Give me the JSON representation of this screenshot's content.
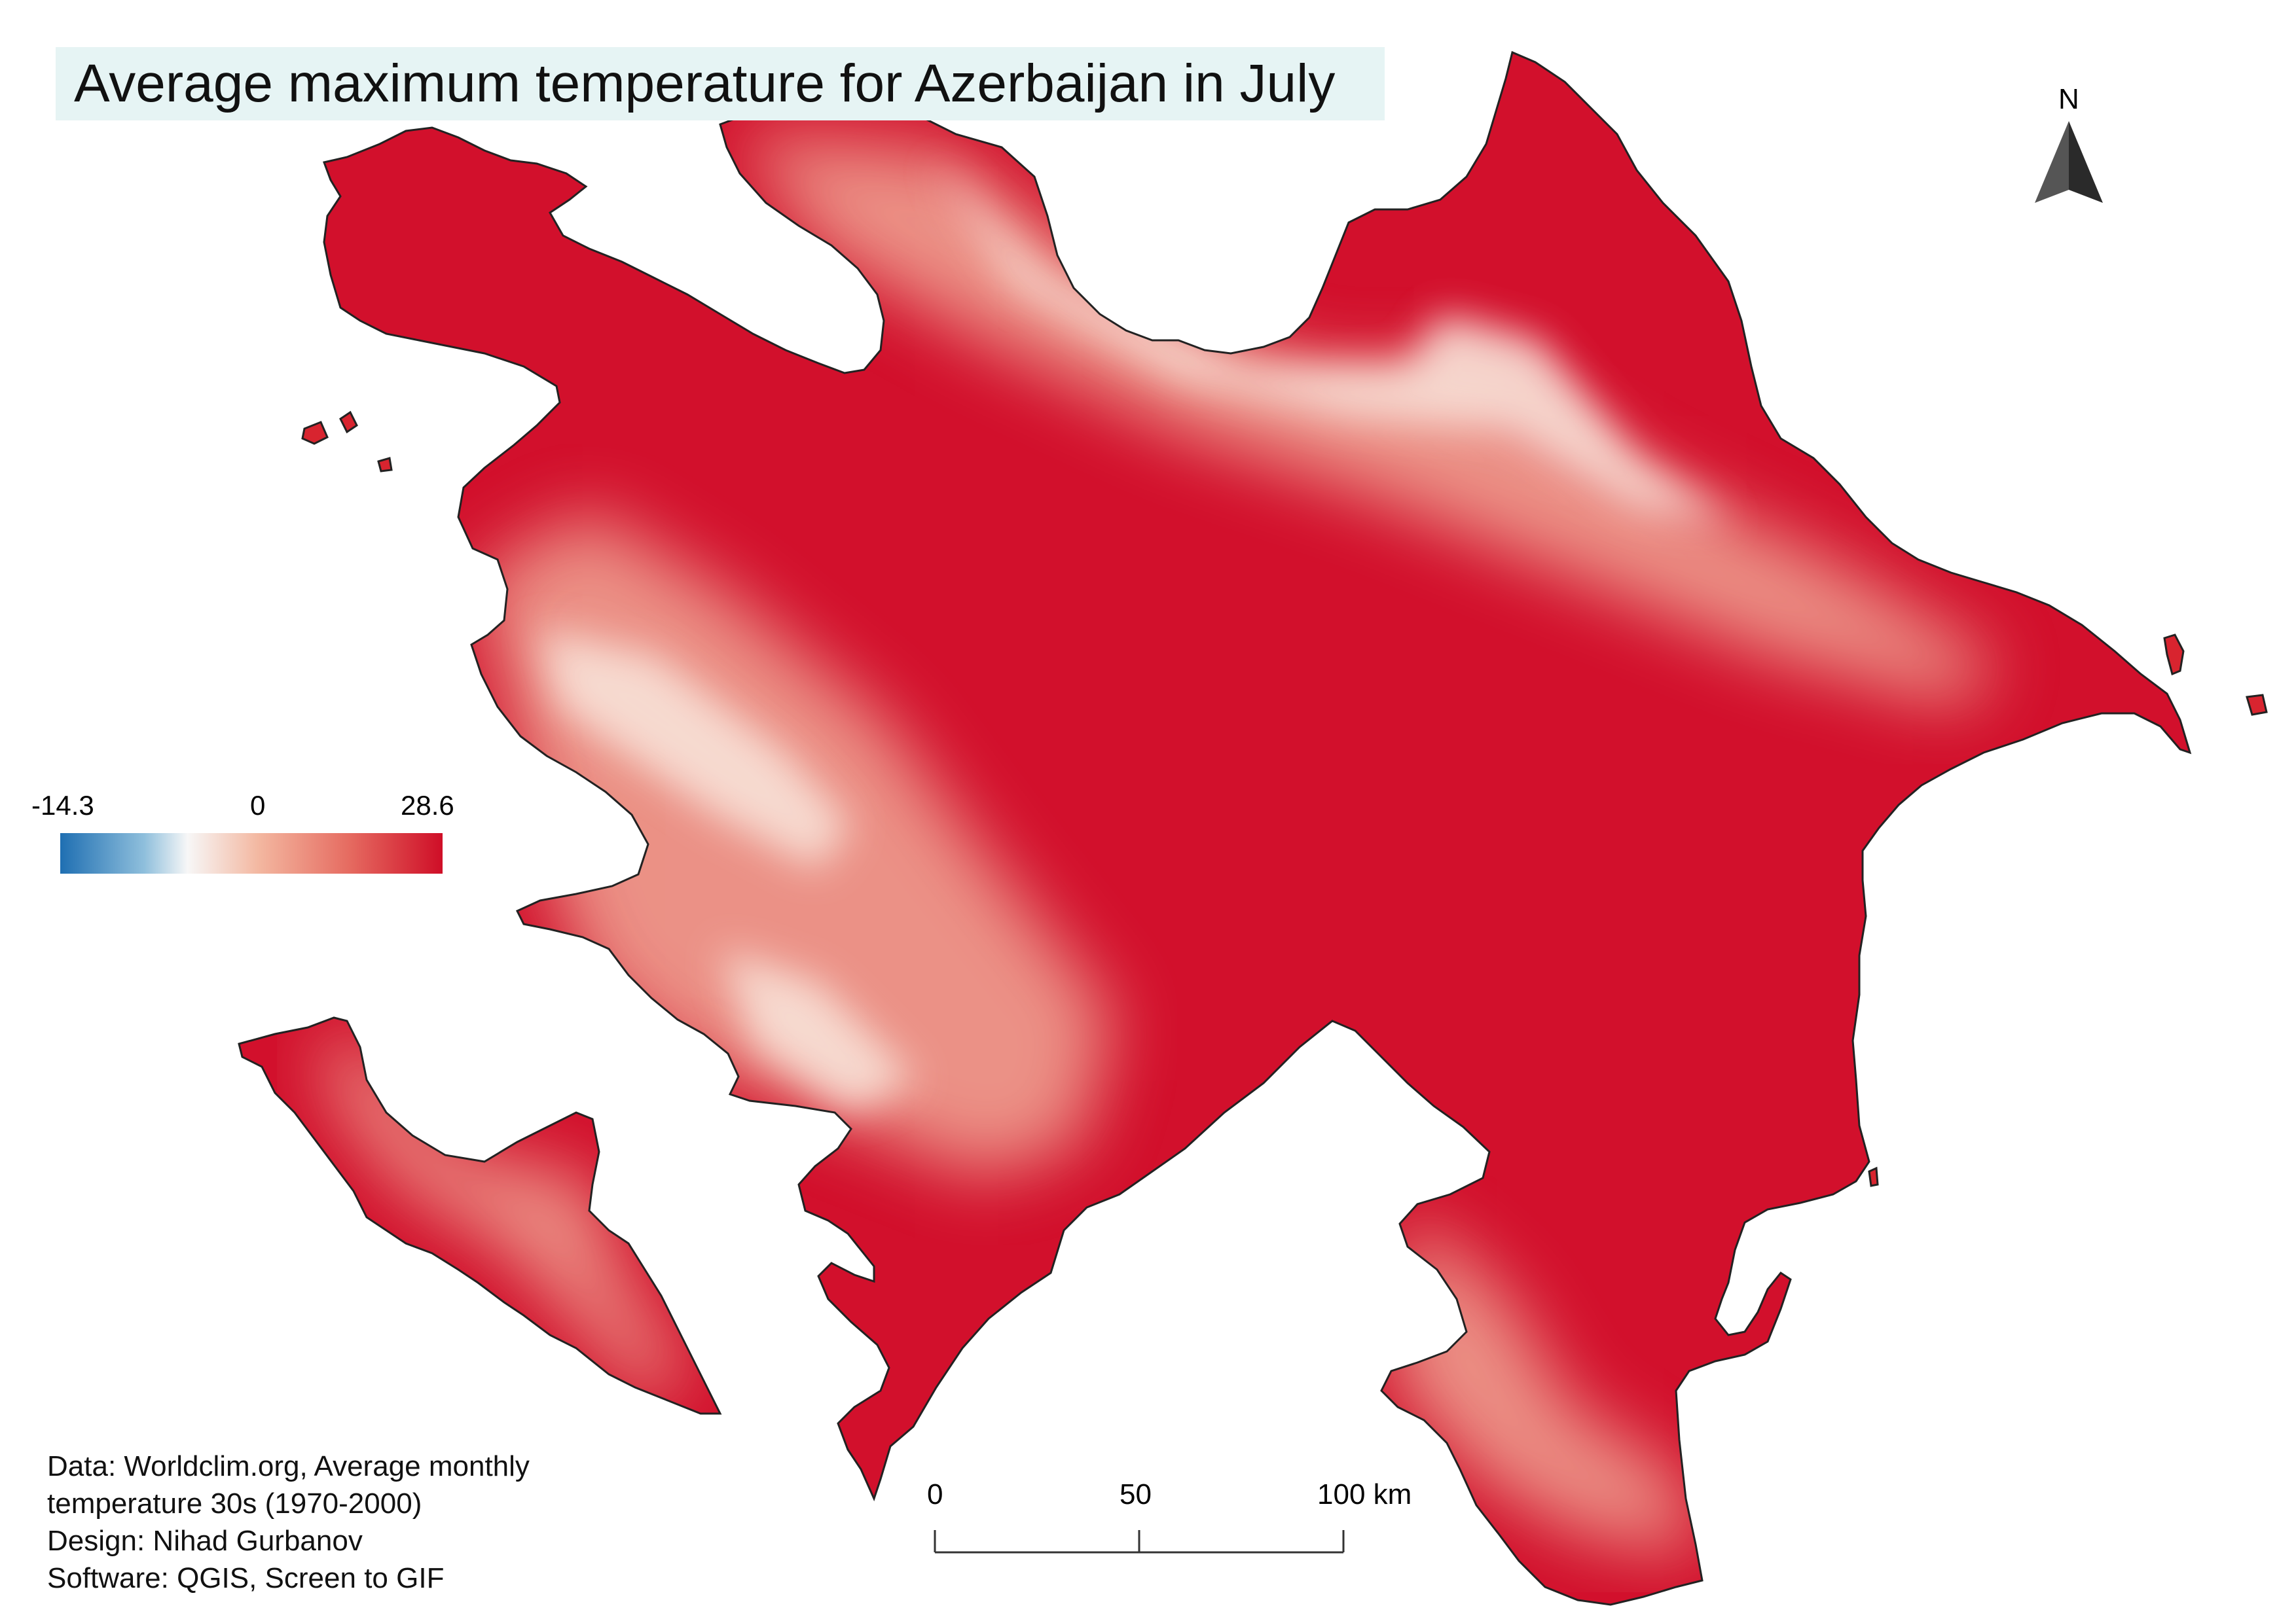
{
  "title": "Average maximum temperature for Azerbaijan in July",
  "legend": {
    "min_label": "-14.3",
    "mid_label": "0",
    "max_label": "28.6",
    "min_value": -14.3,
    "max_value": 28.6,
    "colors": [
      "#1f6fb2",
      "#f7f7f7",
      "#cf0e27"
    ]
  },
  "credits": [
    "Data: Worldclim.org, Average monthly",
    "temperature 30s (1970-2000)",
    "Design: Nihad Gurbanov",
    "Software: QGIS, Screen to GIF"
  ],
  "north_arrow": {
    "label": "N"
  },
  "scale_bar": {
    "labels": [
      "0",
      "50",
      "100 km"
    ]
  },
  "map_colors": {
    "hot": "#d2102c",
    "warm": "#e04848",
    "mild": "#f0a896",
    "cool": "#f8e2d8",
    "outline": "#222222"
  }
}
